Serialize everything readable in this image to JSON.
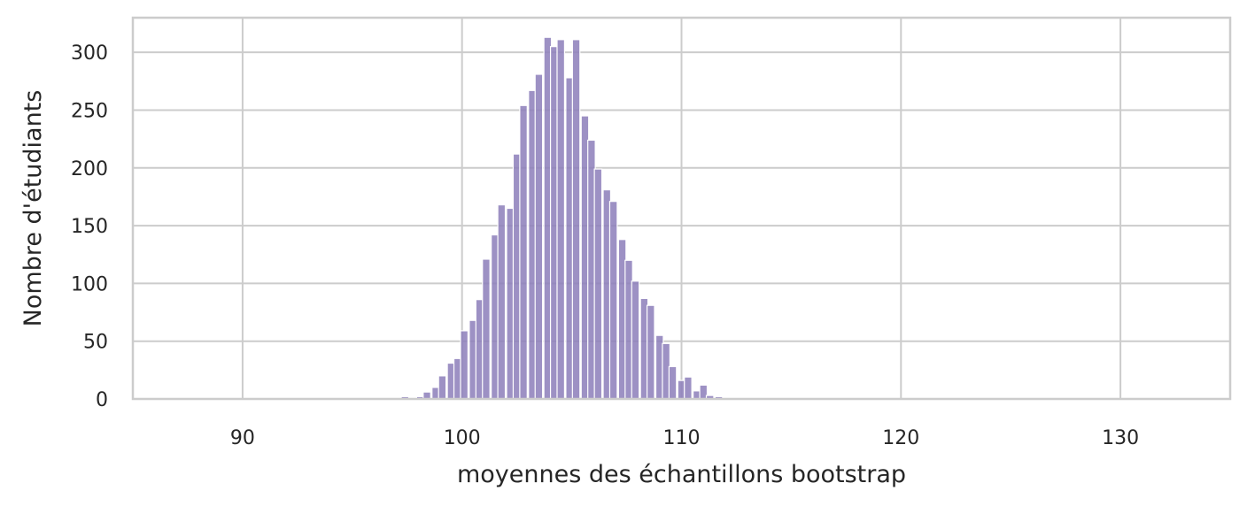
{
  "chart_data": {
    "type": "bar",
    "title": "",
    "xlabel": "moyennes des échantillons bootstrap",
    "ylabel": "Nombre d'étudiants",
    "xlim": [
      85,
      135
    ],
    "ylim": [
      0,
      330
    ],
    "xticks": [
      90,
      100,
      110,
      120,
      130
    ],
    "yticks": [
      0,
      50,
      100,
      150,
      200,
      250,
      300
    ],
    "grid": true,
    "bin_width": 0.34,
    "bar_color": "#8c7eba",
    "x": [
      96.4,
      96.7,
      97.1,
      97.4,
      97.8,
      98.1,
      98.4,
      98.8,
      99.1,
      99.5,
      99.8,
      100.1,
      100.5,
      100.8,
      101.1,
      101.5,
      101.8,
      102.2,
      102.5,
      102.8,
      103.2,
      103.5,
      103.9,
      104.2,
      104.5,
      104.9,
      105.2,
      105.6,
      105.9,
      106.2,
      106.6,
      106.9,
      107.3,
      107.6,
      107.9,
      108.3,
      108.6,
      109.0,
      109.3,
      109.6,
      110.0,
      110.3,
      110.7,
      111.0,
      111.3,
      111.7,
      112.0,
      112.4,
      112.7,
      113.0,
      113.4,
      113.7,
      114.1,
      114.4,
      114.7,
      115.1
    ],
    "values": [
      1,
      0,
      0,
      2,
      0,
      2,
      6,
      10,
      20,
      31,
      35,
      59,
      68,
      86,
      121,
      142,
      168,
      165,
      212,
      254,
      267,
      281,
      313,
      305,
      311,
      278,
      311,
      245,
      224,
      199,
      181,
      171,
      138,
      120,
      102,
      87,
      81,
      55,
      48,
      28,
      16,
      19,
      7,
      12,
      3,
      2,
      0,
      1,
      0,
      0,
      0,
      0,
      0,
      0,
      0,
      0
    ]
  }
}
